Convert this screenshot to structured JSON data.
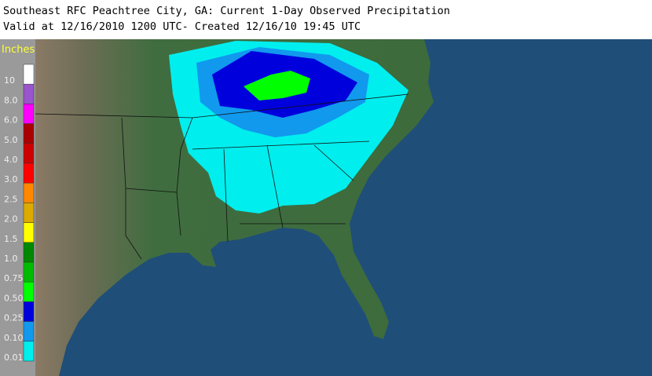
{
  "header": {
    "title": "Southeast RFC Peachtree City, GA: Current 1-Day Observed Precipitation",
    "subtitle": "Valid at 12/16/2010 1200 UTC- Created 12/16/10 19:45 UTC"
  },
  "legend": {
    "unit": "Inches",
    "items": [
      {
        "label": "10",
        "color": "#ffffff"
      },
      {
        "label": "8.0",
        "color": "#9955cc"
      },
      {
        "label": "6.0",
        "color": "#ff00ff"
      },
      {
        "label": "5.0",
        "color": "#aa0000"
      },
      {
        "label": "4.0",
        "color": "#cc0000"
      },
      {
        "label": "3.0",
        "color": "#ff0000"
      },
      {
        "label": "2.5",
        "color": "#ff8800"
      },
      {
        "label": "2.0",
        "color": "#ddaa00"
      },
      {
        "label": "1.5",
        "color": "#ffff00"
      },
      {
        "label": "1.0",
        "color": "#008800"
      },
      {
        "label": "0.75",
        "color": "#00bb00"
      },
      {
        "label": "0.50",
        "color": "#00ff00"
      },
      {
        "label": "0.25",
        "color": "#0000dd"
      },
      {
        "label": "0.10",
        "color": "#1199ee"
      },
      {
        "label": "0.01",
        "color": "#00eeee"
      }
    ]
  }
}
